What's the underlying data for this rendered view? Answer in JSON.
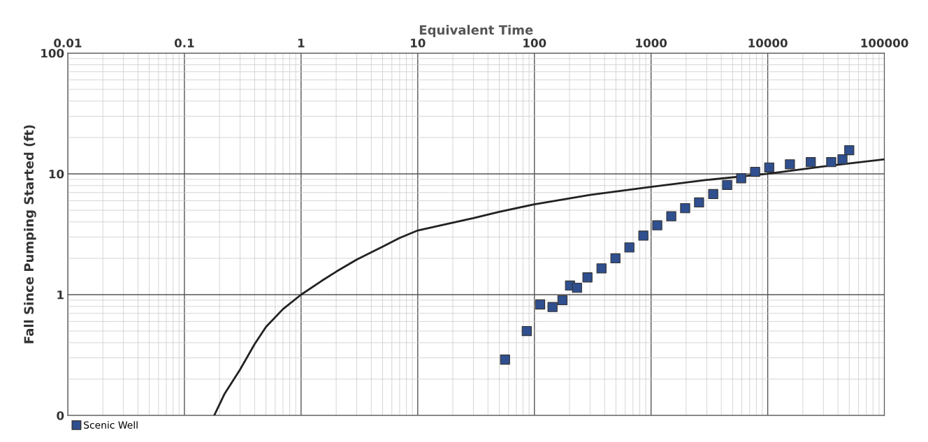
{
  "chart_data": {
    "type": "scatter",
    "xlabel": "Equivalent Time",
    "ylabel": "Fall Since Pumping Started (ft)",
    "log": "xy",
    "xlim": [
      0.01,
      100000
    ],
    "xticks": [
      0.01,
      0.1,
      1,
      10,
      100,
      1000,
      10000,
      100000
    ],
    "ylim": [
      0.1,
      100
    ],
    "yticks": [
      {
        "value": 0.1,
        "label": "0"
      },
      1,
      10,
      100
    ],
    "grid": true,
    "legend": "bottom left",
    "series": [
      {
        "name": "Scenic Well",
        "marker": "square",
        "color": "#2f4f8f",
        "x": [
          56,
          86,
          112,
          143,
          174,
          202,
          232,
          285,
          376,
          495,
          652,
          859,
          1130,
          1490,
          1960,
          2580,
          3410,
          4490,
          5920,
          7800,
          10300,
          15500,
          23400,
          35000,
          43700,
          50000
        ],
        "values": [
          0.29,
          0.5,
          0.83,
          0.79,
          0.9,
          1.19,
          1.14,
          1.39,
          1.65,
          2.0,
          2.46,
          3.08,
          3.75,
          4.46,
          5.2,
          5.8,
          6.8,
          8.1,
          9.2,
          10.4,
          11.3,
          12.0,
          12.5,
          12.5,
          13.2,
          15.7
        ]
      },
      {
        "type": "line",
        "marker": "none",
        "line_style": "solid",
        "color": "#222222",
        "x": [
          0.18,
          0.22,
          0.3,
          0.4,
          0.5,
          0.7,
          1,
          1.5,
          2,
          3,
          5,
          7,
          10,
          20,
          30,
          50,
          100,
          300,
          1000,
          3000,
          10000,
          30000,
          100000
        ],
        "values": [
          0.1,
          0.15,
          0.24,
          0.39,
          0.54,
          0.76,
          1.0,
          1.3,
          1.55,
          1.95,
          2.5,
          2.95,
          3.4,
          3.95,
          4.3,
          4.85,
          5.6,
          6.7,
          7.8,
          8.9,
          10,
          11.5,
          13.2
        ]
      }
    ]
  }
}
